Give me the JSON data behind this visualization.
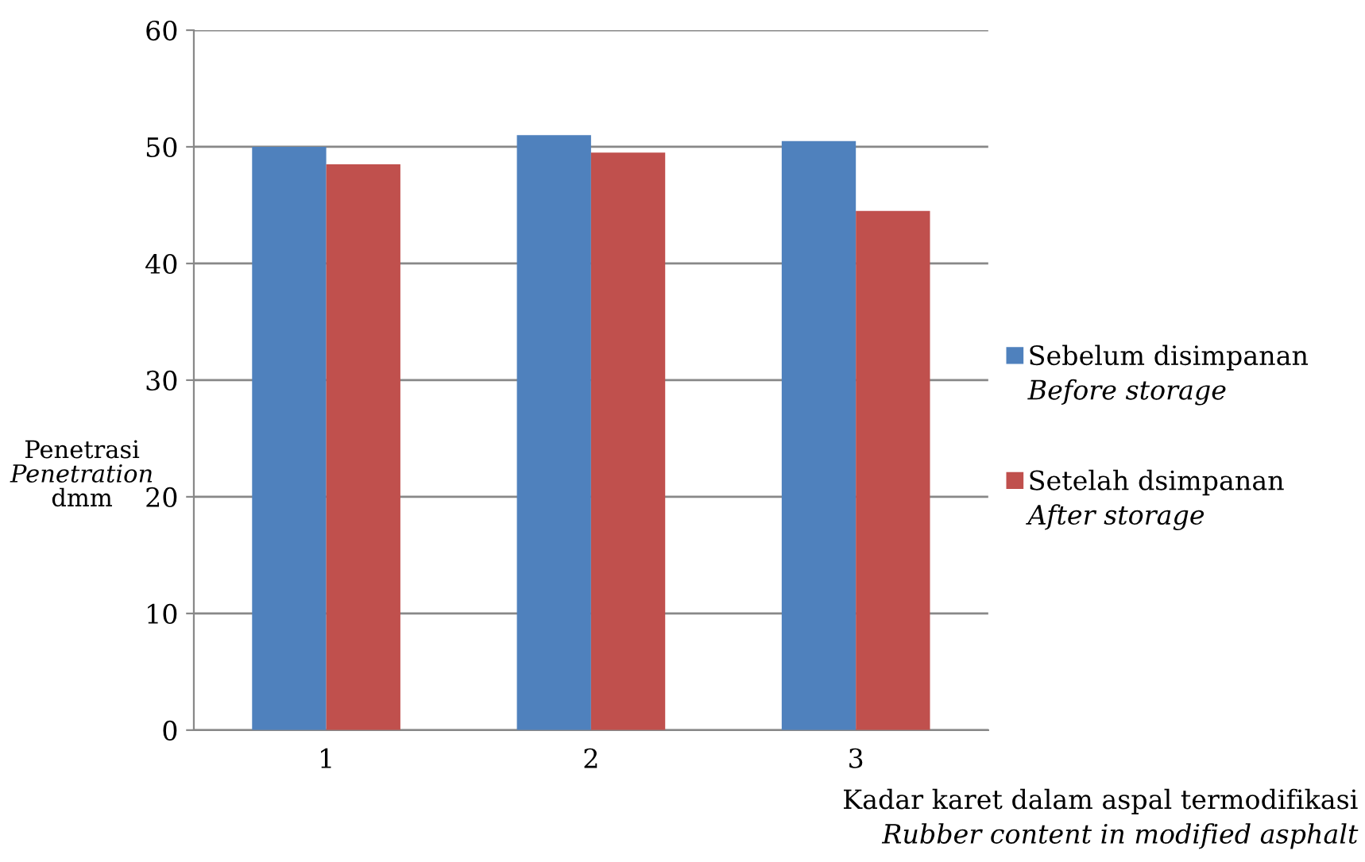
{
  "chart_data": {
    "type": "bar",
    "categories": [
      "1",
      "2",
      "3"
    ],
    "series": [
      {
        "name": "Sebelum disimpanan\nBefore storage",
        "color": "#4f81bd",
        "values": [
          50,
          51,
          50.5
        ]
      },
      {
        "name": "Setelah dsimpanan\nAfter storage",
        "color": "#c0504d",
        "values": [
          48.5,
          49.5,
          44.5
        ]
      }
    ],
    "ylabel": "Penetrasi\nPenetration\ndmm",
    "xlabel": "Kadar karet dalam aspal termodifikasi\nRubber content in modified asphalt",
    "ylim": [
      0,
      60
    ],
    "yticks": [
      0,
      10,
      20,
      30,
      40,
      50,
      60
    ],
    "grid": "y",
    "legend": "right"
  }
}
